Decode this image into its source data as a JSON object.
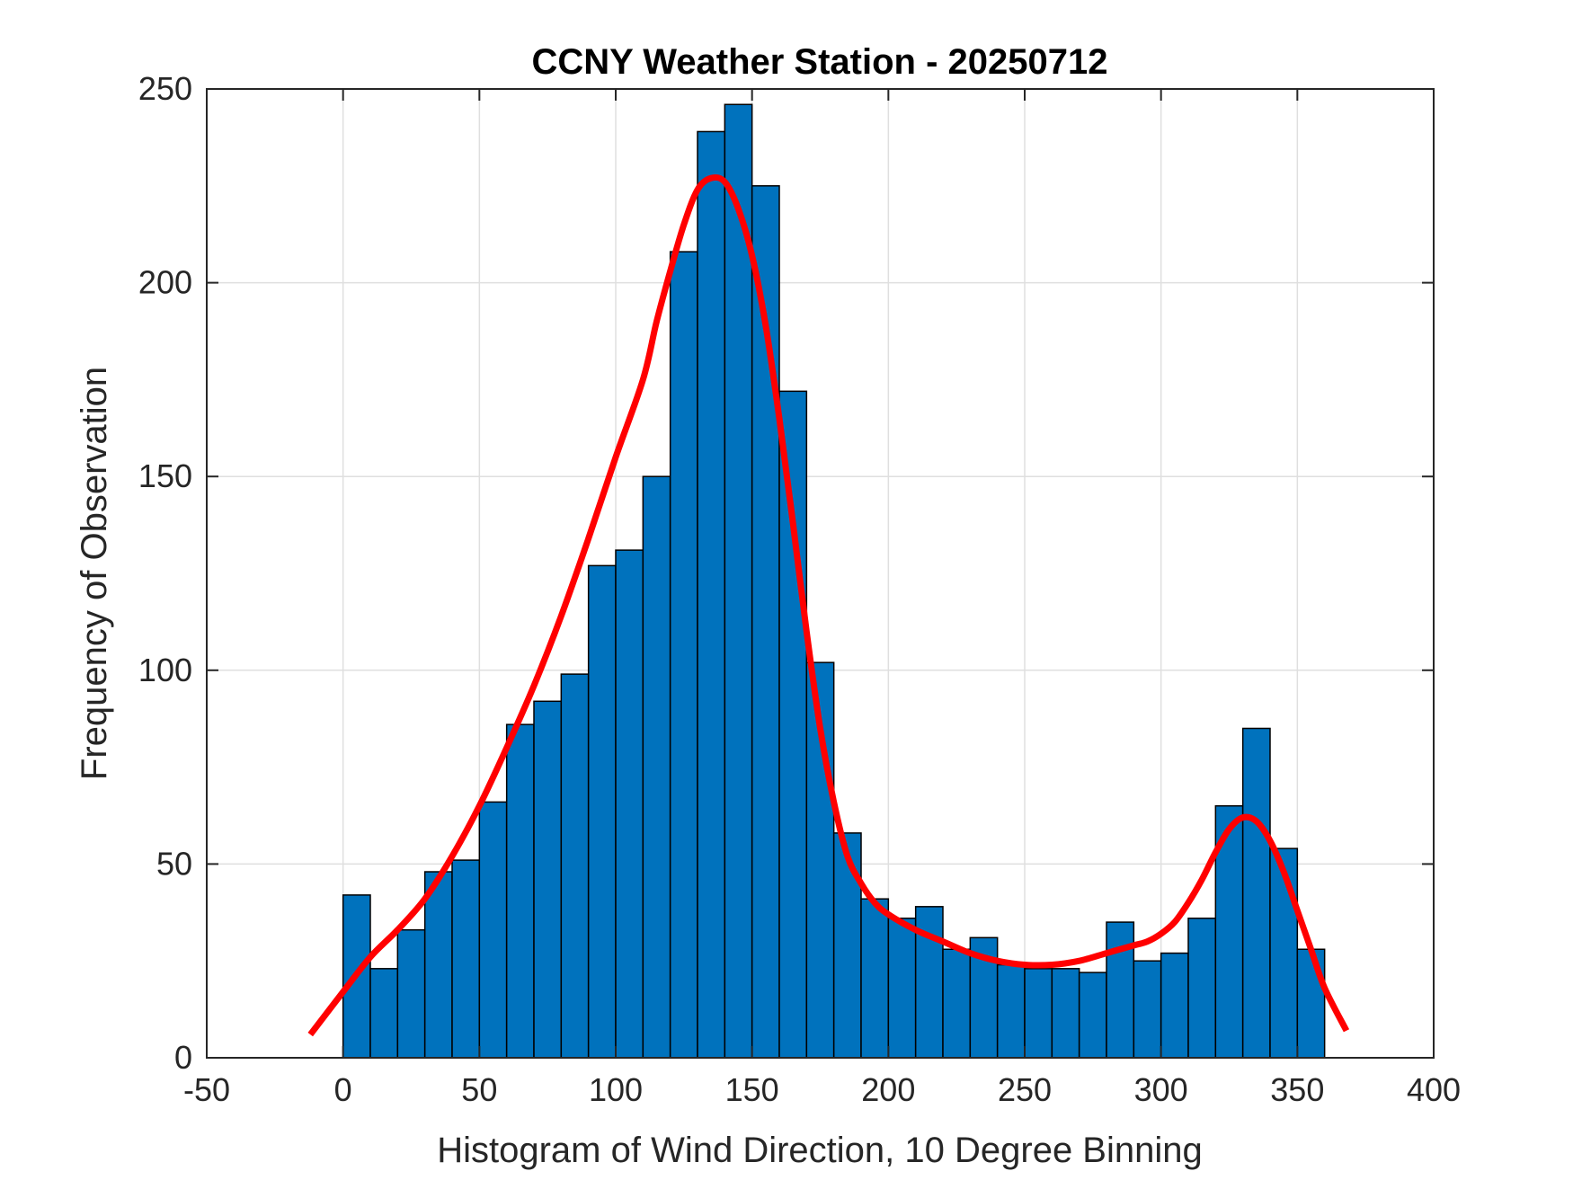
{
  "chart_data": {
    "type": "bar",
    "title": "CCNY Weather Station - 20250712",
    "xlabel": "Histogram of Wind Direction, 10 Degree Binning",
    "ylabel": "Frequency of Observation",
    "xlim": [
      -50,
      400
    ],
    "ylim": [
      0,
      250
    ],
    "xticks": [
      -50,
      0,
      50,
      100,
      150,
      200,
      250,
      300,
      350,
      400
    ],
    "yticks": [
      0,
      50,
      100,
      150,
      200,
      250
    ],
    "xtick_labels": [
      "-50",
      "0",
      "50",
      "100",
      "150",
      "200",
      "250",
      "300",
      "350",
      "400"
    ],
    "ytick_labels": [
      "0",
      "50",
      "100",
      "150",
      "200",
      "250"
    ],
    "grid": true,
    "bin_width": 10,
    "bin_edges_start": [
      0,
      10,
      20,
      30,
      40,
      50,
      60,
      70,
      80,
      90,
      100,
      110,
      120,
      130,
      140,
      150,
      160,
      170,
      180,
      190,
      200,
      210,
      220,
      230,
      240,
      250,
      260,
      270,
      280,
      290,
      300,
      310,
      320,
      330,
      340,
      350
    ],
    "values": [
      42,
      23,
      33,
      48,
      51,
      66,
      86,
      92,
      99,
      127,
      131,
      150,
      208,
      239,
      246,
      225,
      172,
      102,
      58,
      41,
      36,
      39,
      28,
      31,
      24,
      23,
      23,
      22,
      35,
      25,
      27,
      36,
      65,
      85,
      54,
      28
    ],
    "bar_color": "#0072BD",
    "bar_edge_color": "#000000",
    "series": [
      {
        "type": "line",
        "color": "#FF0000",
        "x": [
          -12,
          0,
          10,
          20,
          30,
          40,
          50,
          60,
          70,
          80,
          90,
          100,
          110,
          115,
          120,
          125,
          130,
          135,
          140,
          145,
          150,
          155,
          160,
          165,
          170,
          175,
          180,
          185,
          190,
          195,
          200,
          210,
          220,
          230,
          240,
          250,
          260,
          270,
          280,
          290,
          295,
          300,
          305,
          310,
          315,
          320,
          325,
          330,
          335,
          340,
          345,
          350,
          355,
          360,
          368
        ],
        "y": [
          6,
          17,
          26,
          33,
          41,
          52,
          65,
          80,
          96,
          114,
          134,
          155,
          175,
          190,
          203,
          215,
          224,
          227,
          226,
          219,
          207,
          189,
          165,
          138,
          110,
          85,
          66,
          52,
          45,
          40,
          37,
          33,
          30,
          27,
          25,
          24,
          24,
          25,
          27,
          29,
          30,
          32,
          35,
          40,
          46,
          53,
          59,
          62,
          61,
          56,
          48,
          38,
          28,
          18,
          7
        ]
      }
    ]
  }
}
